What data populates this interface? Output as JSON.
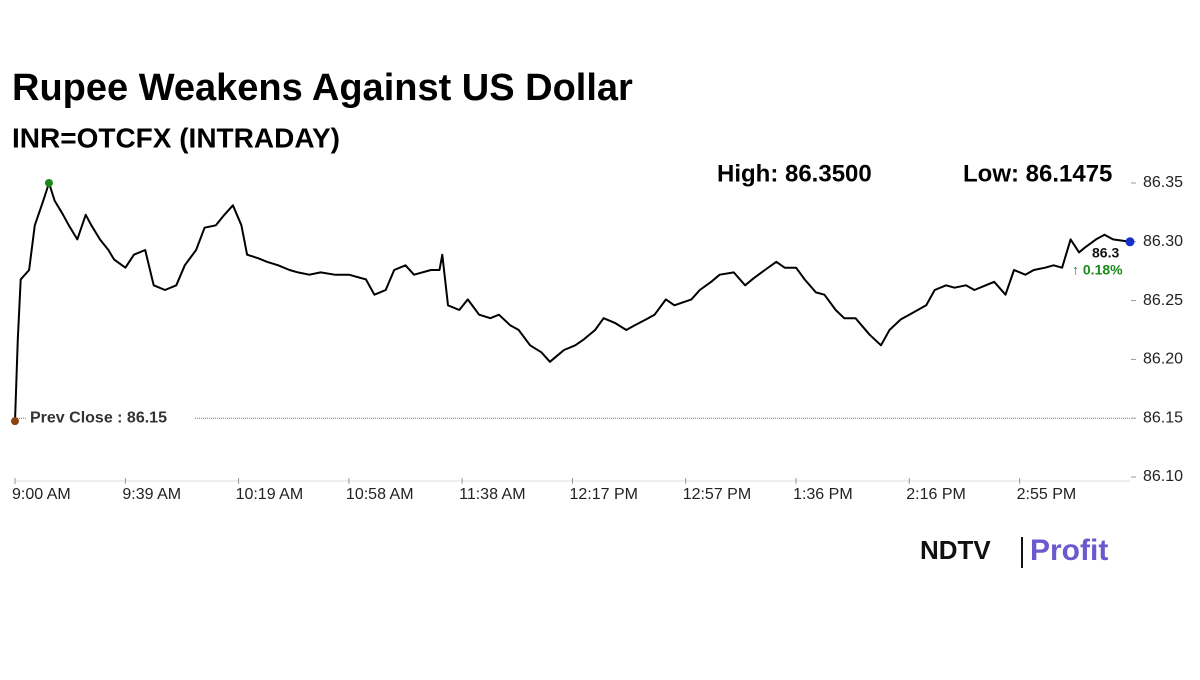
{
  "chart_data": {
    "type": "line",
    "title": "Rupee Weakens Against US Dollar",
    "subtitle": "INR=OTCFX (INTRADAY)",
    "annotations": [
      "High: 86.3500",
      "Low: 86.1475"
    ],
    "prev_close": {
      "value": 86.15,
      "label": "Prev Close : 86.15"
    },
    "last_label": "86.3",
    "change_label": "↑ 0.18%",
    "brand": "NDTV",
    "brand_sub": "Profit",
    "x": [
      540,
      541,
      542,
      545,
      547,
      550,
      552,
      554,
      557,
      559,
      562,
      565,
      567,
      570,
      573,
      575,
      579,
      582,
      586,
      589,
      593,
      597,
      600,
      604,
      607,
      611,
      614,
      617,
      620,
      622,
      626,
      629,
      633,
      637,
      640,
      644,
      648,
      653,
      658,
      664,
      667,
      671,
      674,
      678,
      681,
      687,
      690,
      691,
      693,
      697,
      700,
      704,
      708,
      711,
      715,
      718,
      722,
      726,
      729,
      732,
      734,
      738,
      741,
      745,
      748,
      752,
      756,
      759,
      763,
      766,
      770,
      773,
      779,
      782,
      786,
      789,
      794,
      798,
      801,
      805,
      809,
      812,
      816,
      819,
      823,
      826,
      830,
      833,
      837,
      842,
      846,
      849,
      853,
      856,
      862,
      865,
      869,
      872,
      876,
      879,
      883,
      886,
      890,
      893,
      897,
      900,
      904,
      907,
      910,
      913,
      916,
      918,
      922,
      925,
      928,
      934
    ],
    "series": [
      {
        "name": "INR=OTCFX",
        "color": "#000000",
        "values": [
          86.1475,
          86.217,
          86.268,
          86.276,
          86.314,
          86.335,
          86.35,
          86.335,
          86.323,
          86.314,
          86.302,
          86.323,
          86.314,
          86.302,
          86.293,
          86.285,
          86.278,
          86.289,
          86.293,
          86.263,
          86.259,
          86.263,
          86.28,
          86.293,
          86.312,
          86.314,
          86.323,
          86.331,
          86.314,
          86.289,
          86.286,
          86.283,
          86.28,
          86.276,
          86.274,
          86.272,
          86.274,
          86.272,
          86.272,
          86.268,
          86.255,
          86.259,
          86.276,
          86.28,
          86.272,
          86.276,
          86.276,
          86.289,
          86.246,
          86.242,
          86.251,
          86.238,
          86.235,
          86.238,
          86.229,
          86.225,
          86.212,
          86.206,
          86.198,
          86.204,
          86.208,
          86.212,
          86.217,
          86.225,
          86.235,
          86.231,
          86.225,
          86.229,
          86.234,
          86.238,
          86.251,
          86.246,
          86.251,
          86.259,
          86.266,
          86.272,
          86.274,
          86.263,
          86.269,
          86.276,
          86.283,
          86.278,
          86.278,
          86.268,
          86.257,
          86.255,
          86.242,
          86.235,
          86.235,
          86.221,
          86.212,
          86.225,
          86.234,
          86.238,
          86.246,
          86.259,
          86.263,
          86.261,
          86.263,
          86.259,
          86.263,
          86.266,
          86.255,
          86.276,
          86.272,
          86.276,
          86.278,
          86.28,
          86.278,
          86.302,
          86.291,
          86.295,
          86.302,
          86.306,
          86.302,
          86.3
        ]
      }
    ],
    "xlim": [
      540,
      934
    ],
    "xticks": [
      {
        "value": 540,
        "label": "9:00 AM"
      },
      {
        "value": 579,
        "label": "9:39 AM"
      },
      {
        "value": 619,
        "label": "10:19 AM"
      },
      {
        "value": 658,
        "label": "10:58 AM"
      },
      {
        "value": 698,
        "label": "11:38 AM"
      },
      {
        "value": 737,
        "label": "12:17 PM"
      },
      {
        "value": 777,
        "label": "12:57 PM"
      },
      {
        "value": 816,
        "label": "1:36 PM"
      },
      {
        "value": 856,
        "label": "2:16 PM"
      },
      {
        "value": 895,
        "label": "2:55 PM"
      }
    ],
    "ylim": [
      86.1,
      86.35
    ],
    "yticks": [
      {
        "value": 86.1,
        "label": "86.10"
      },
      86.15,
      {
        "value": 86.2,
        "label": "86.20"
      },
      86.25,
      {
        "value": 86.3,
        "label": "86.30"
      },
      86.35
    ],
    "grid": false
  }
}
